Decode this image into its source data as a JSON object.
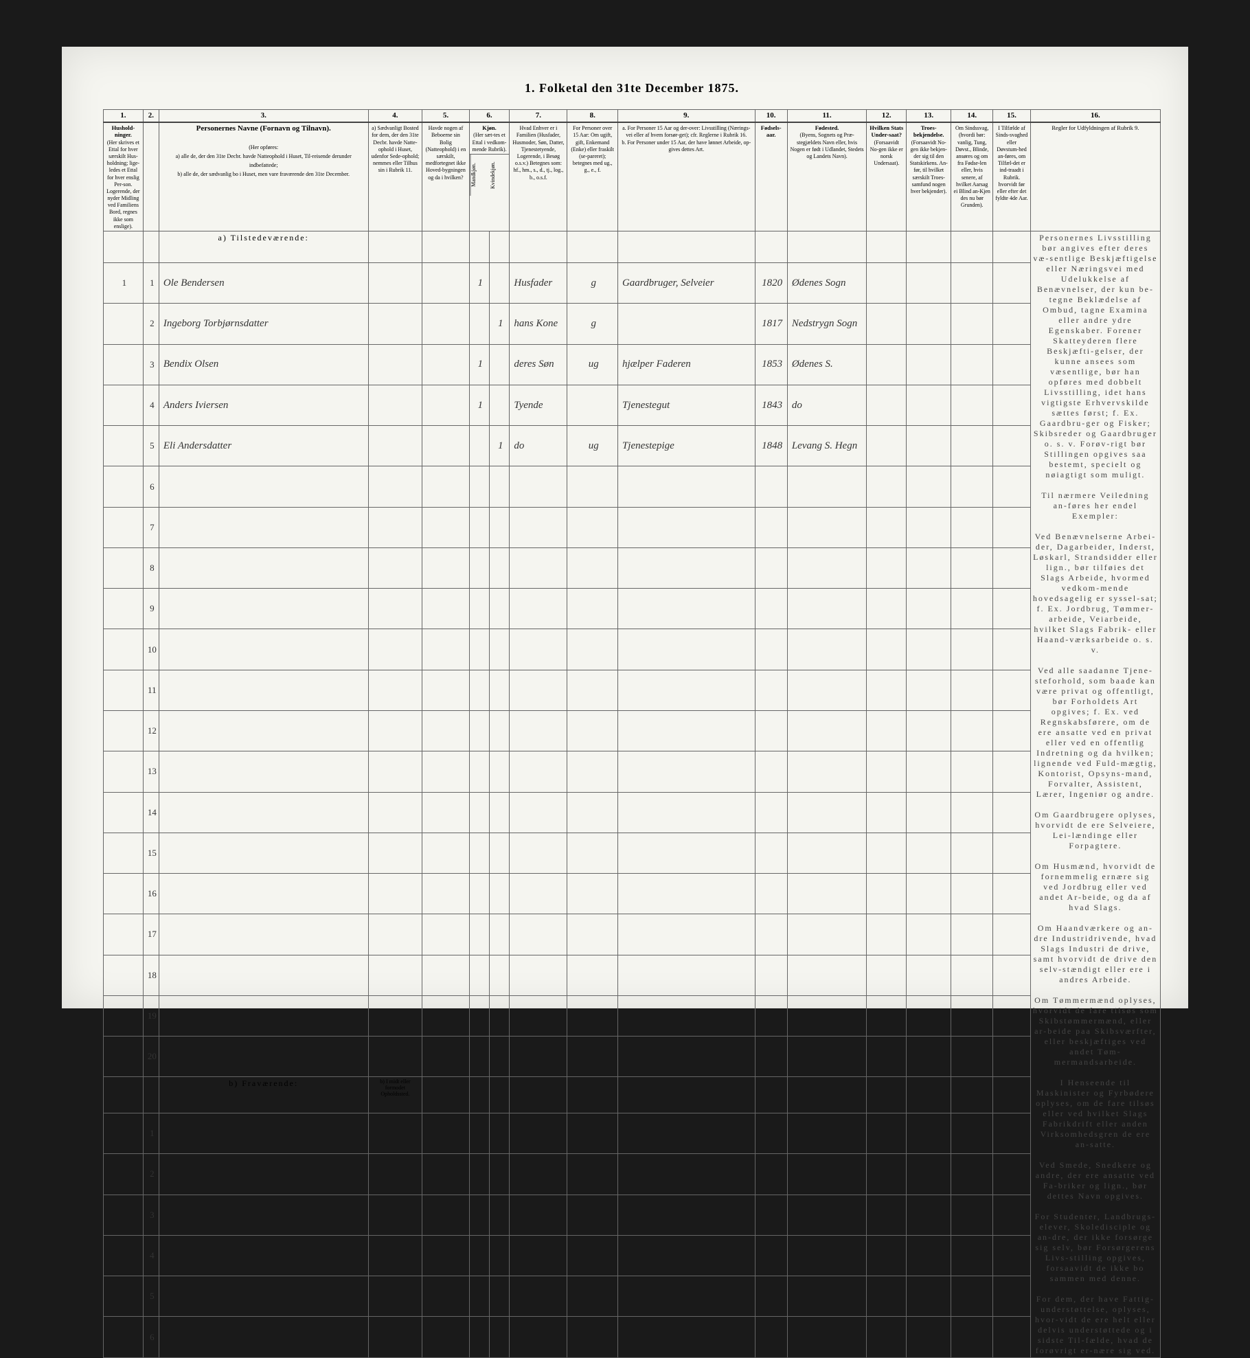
{
  "title": "1. Folketal den 31te December 1875.",
  "columns": {
    "nums": [
      "1.",
      "2.",
      "3.",
      "4.",
      "5.",
      "6.",
      "7.",
      "8.",
      "9.",
      "10.",
      "11.",
      "12.",
      "13.",
      "14.",
      "15.",
      "16."
    ],
    "h1": "Hushold-ninger.",
    "h1_sub": "(Her skrives et Ettal for hver særskilt Hus-holdning; lige-ledes et Ettal for hver enslig Per-son. Logerende, der nyder Midling ved Familiens Bord, regnes ikke som enslige).",
    "h3": "Personernes Navne (Fornavn og Tilnavn).",
    "h3_sub": "(Her opføres:\na) alle de, der den 31te Decbr. havde Natteophold i Huset, Til-reisende derunder indbefattede;\nb) alle de, der sædvanlig bo i Huset, men vare fraværende den 31te December.",
    "h4": "a) Sædvanligt Bosted for dem, der den 31te Decbr. havde Natte-ophold i Huset, udenfor Sede-ophold; nemmes eller Tilhus sin i Rubrik 11.",
    "h5": "Havde nogen af Beboerne sin Bolig (Natteophold) i en særskilt, medfortegnet ikke Hoved-bygningen og da i hvilken?",
    "h6": "Kjøn.",
    "h6_sub": "(Her sæt-tes et Ettal i vedkom-mende Rubrik).",
    "h6a": "Mandkjøn.",
    "h6b": "Kvindekjøn.",
    "h7": "Hvad Enhver er i Familien (Husfader, Husmoder, Søn, Datter, Tjenestetyende, Logerende, i Besøg o.s.v.) Betegnes som: hf., hm., s., d., tj., log., b., o.s.f.",
    "h8": "For Personer over 15 Aar: Om ugift, gift, Enkemand (Enke) eller fraskilt (se-pareret); betegnes med ug., g., e., f.",
    "h9": "a. For Personer 15 Aar og der-over: Livsstilling (Nærings-vei eller af hvem forsør-get); cfr. Reglerne i Rubrik 16.\nb. For Personer under 15 Aar, der have lønnet Arbeide, op-gives dettes Art.",
    "h10": "Fødsels-aar.",
    "h11": "Fødested.",
    "h11_sub": "(Byens, Sognets og Præ-stegjældets Navn eller, hvis Nogen er født i Udlandet, Stedets og Landets Navn).",
    "h12": "Hvilken Stats Under-saat?",
    "h12_sub": "(Forsaavidt No-gen ikke er norsk Undersaat).",
    "h13": "Troes-bekjendelse.",
    "h13_sub": "(Forsaavidt No-gen ikke bekjen-der sig til den Statskirkens. An-før, til hvilket særskilt Troes-samfund nogen hver bekjender).",
    "h14": "Om Sindssvag, (hvordi bør: vanlig, Tung, Døvst., Blinde, ansøres og om fra Fødse-len eller, hvis senere, af hvilket Aarsag ei Blind an-Kjen des nu bør Grunden).",
    "h15": "I Tilfælde af Sinds-svaghed eller Døvstum-hed an-føres, om Tilfæl-det er ind-traadt i Rubrik. hvorvidt før eller efter det fyldte 4de Aar.",
    "h16": "Regler for Udfyldningen af Rubrik 9."
  },
  "sections": {
    "present": "a) Tilstedeværende:",
    "absent": "b) Fraværende:",
    "absent_note": "b) I midt eller formodet Opholdssted."
  },
  "entries": [
    {
      "n": "1",
      "hh": "1",
      "name": "Ole Bendersen",
      "c4": "",
      "c5": "",
      "m": "1",
      "f": "",
      "rel": "Husfader",
      "civ": "g",
      "occ": "Gaardbruger, Selveier",
      "yr": "1820",
      "bp": "Ødenes Sogn"
    },
    {
      "n": "2",
      "hh": "",
      "name": "Ingeborg Torbjørnsdatter",
      "c4": "",
      "c5": "",
      "m": "",
      "f": "1",
      "rel": "hans Kone",
      "civ": "g",
      "occ": "",
      "yr": "1817",
      "bp": "Nedstrygn Sogn"
    },
    {
      "n": "3",
      "hh": "",
      "name": "Bendix Olsen",
      "c4": "",
      "c5": "",
      "m": "1",
      "f": "",
      "rel": "deres Søn",
      "civ": "ug",
      "occ": "hjælper Faderen",
      "yr": "1853",
      "bp": "Ødenes S."
    },
    {
      "n": "4",
      "hh": "",
      "name": "Anders Iviersen",
      "c4": "",
      "c5": "",
      "m": "1",
      "f": "",
      "rel": "Tyende",
      "civ": "",
      "occ": "Tjenestegut",
      "yr": "1843",
      "bp": "do"
    },
    {
      "n": "5",
      "hh": "",
      "name": "Eli Andersdatter",
      "c4": "",
      "c5": "",
      "m": "",
      "f": "1",
      "rel": "do",
      "civ": "ug",
      "occ": "Tjenestepige",
      "yr": "1848",
      "bp": "Levang S. Hegn"
    }
  ],
  "empty_rows": [
    "6",
    "7",
    "8",
    "9",
    "10",
    "11",
    "12",
    "13",
    "14",
    "15",
    "16",
    "17",
    "18",
    "19",
    "20"
  ],
  "absent_rows": [
    "1",
    "2",
    "3",
    "4",
    "5",
    "6"
  ],
  "rules_text": "Personernes Livsstilling bør angives efter deres væ-sentlige Beskjæftigelse eller Næringsvei med Udelukkelse af Benævnelser, der kun be-tegne Beklædelse af Ombud, tagne Examina eller andre ydre Egenskaber. Forener Skatteyderen flere Beskjæfti-gelser, der kunne ansees som væsentlige, bør han opføres med dobbelt Livsstilling, idet hans vigtigste Erhvervskilde sættes først; f. Ex. Gaardbru-ger og Fisker; Skibsreder og Gaardbruger o. s. v. Forøv-rigt bør Stillingen opgives saa bestemt, specielt og nøiagtigt som muligt.\n\nTil nærmere Veiledning an-føres her endel Exempler:\n\nVed Benævnelserne Arbei-der, Dagarbeider, Inderst, Løskarl, Strandsidder eller lign., bør tilføies det Slags Arbeide, hvormed vedkom-mende hovedsagelig er syssel-sat; f. Ex. Jordbrug, Tømmer-arbeide, Veiarbeide, hvilket Slags Fabrik- eller Haand-værksarbeide o. s. v.\n\nVed alle saadanne Tjene-steforhold, som baade kan være privat og offentligt, bør Forholdets Art opgives; f. Ex. ved Regnskabsførere, om de ere ansatte ved en privat eller ved en offentlig Indretning og da hvilken; lignende ved Fuld-mægtig, Kontorist, Opsyns-mand, Forvalter, Assistent, Lærer, Ingeniør og andre.\n\nOm Gaardbrugere oplyses, hvorvidt de ere Selveiere, Lei-lændinge eller Forpagtere.\n\nOm Husmænd, hvorvidt de fornemmelig ernære sig ved Jordbrug eller ved andet Ar-beide, og da af hvad Slags.\n\nOm Haandværkere og an-dre Industridrivende, hvad Slags Industri de drive, samt hvorvidt de drive den selv-stændigt eller ere i andres Arbeide.\n\nOm Tømmermænd oplyses, hvorvidt de fare tilsøs som Skibstømmermænd, eller ar-beide paa Skibsværfter, eller beskjæftiges ved andet Tøm-mermandsarbeide.\n\nI Henseende til Maskinister og Fyrbødere oplyses, om de fare tilsøs eller ved hvilket Slags Fabrikdrift eller anden Virksomhedsgren de ere an-satte.\n\nVed Smede, Snedkere og andre, der ere ansatte ved Fa-briker og lign., bør dettes Navn opgives.\n\nFor Studenter, Landbrugs-elever, Skoledisciple og an-dre, der ikke forsørge sig selv, bør Forsørgerens Livs-stilling opgives, forsaavidt de ikke bo sammen med denne.\n\nFor dem, der have Fattig-understøttelse, oplyses, hvor-vidt de ere helt eller delvis understøttede og i sidste Til-fælde, hvad de forøvrigt er-nære sig ved."
}
